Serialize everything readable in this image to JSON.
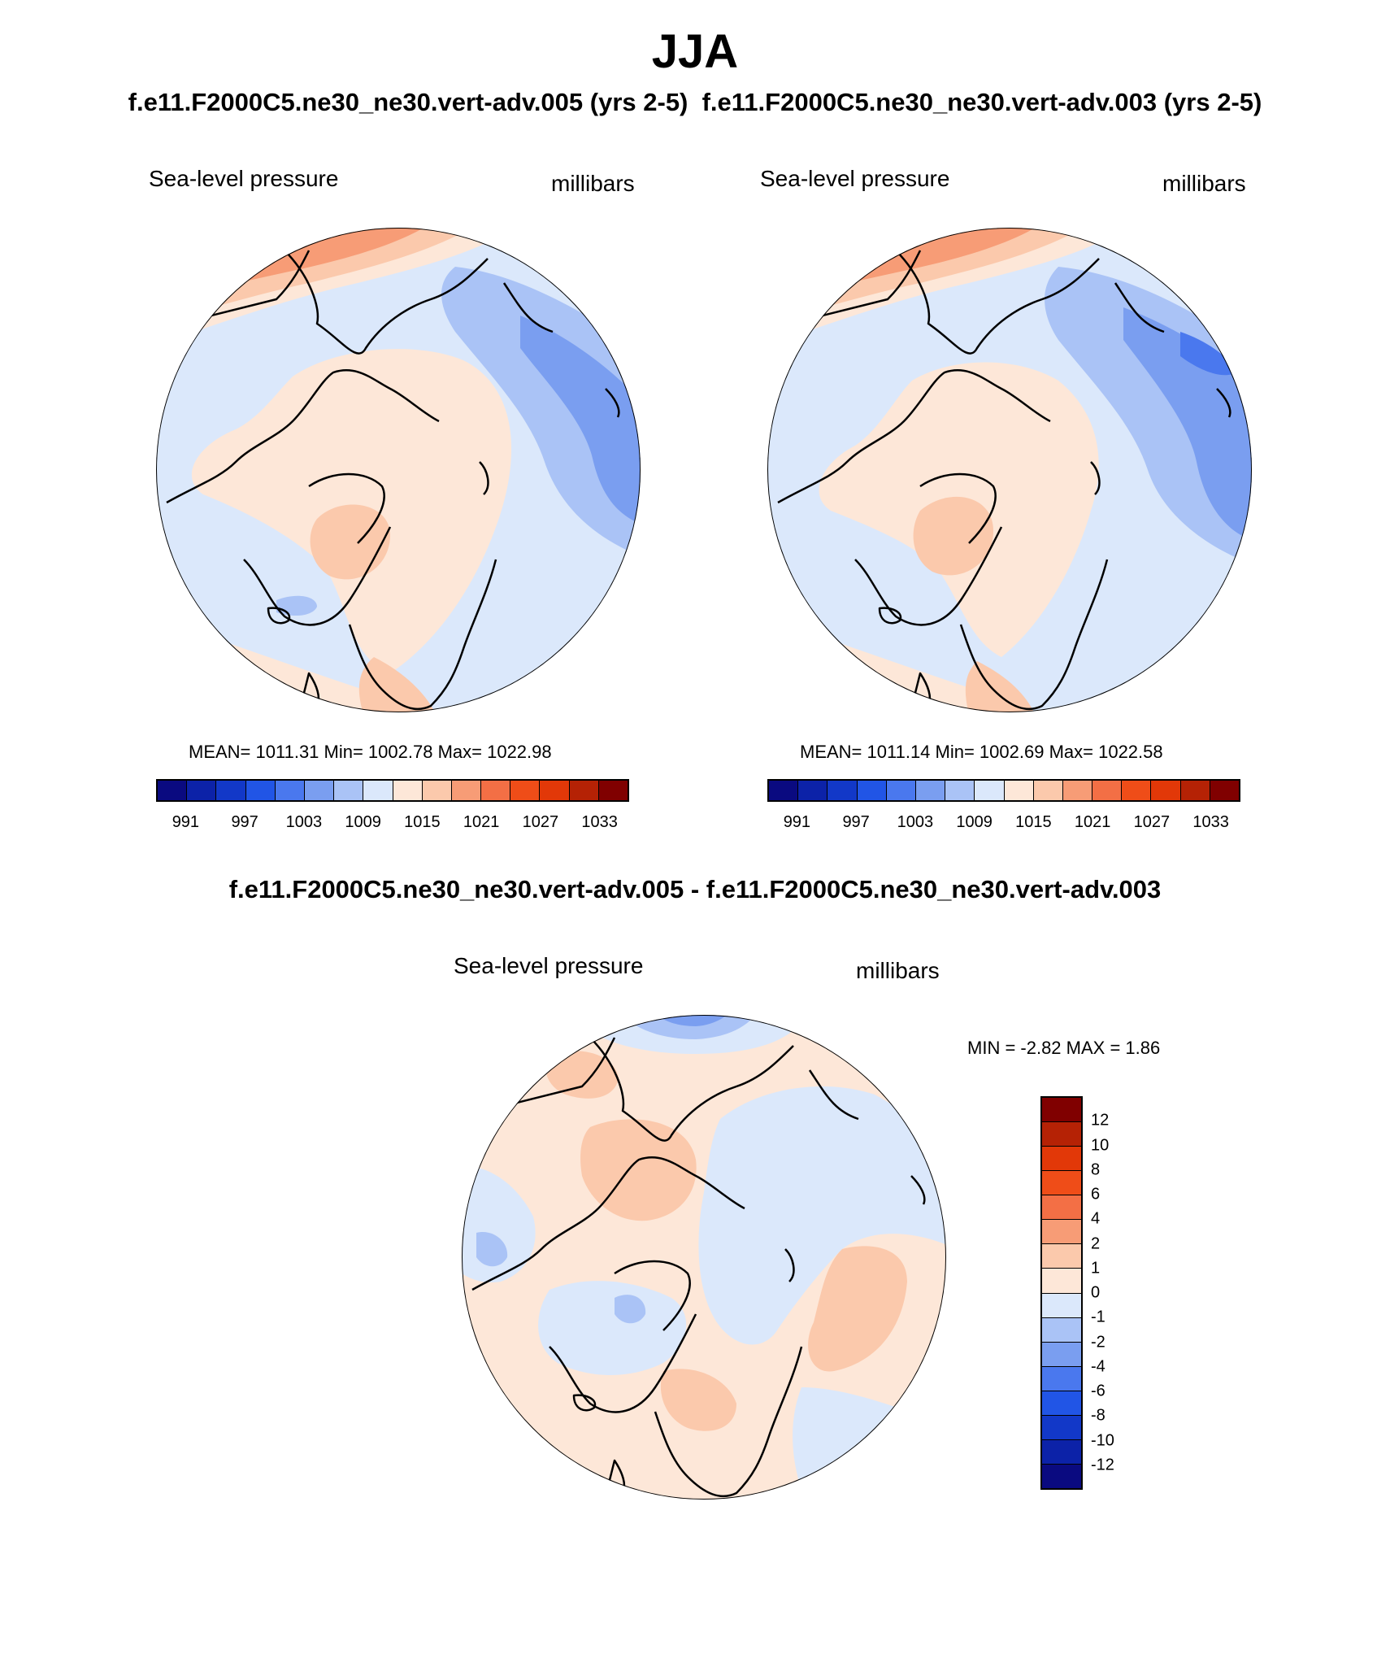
{
  "figure": {
    "season": "JJA",
    "case_titles": "f.e11.F2000C5.ne30_ne30.vert-adv.005 (yrs 2-5)  f.e11.F2000C5.ne30_ne30.vert-adv.003 (yrs 2-5)",
    "diff_title": "f.e11.F2000C5.ne30_ne30.vert-adv.005 - f.e11.F2000C5.ne30_ne30.vert-adv.003"
  },
  "panels": {
    "left": {
      "variable": "Sea-level pressure",
      "units": "millibars",
      "stats": "MEAN= 1011.31  Min= 1002.78  Max= 1022.98"
    },
    "right": {
      "variable": "Sea-level pressure",
      "units": "millibars",
      "stats": "MEAN= 1011.14  Min= 1002.69  Max= 1022.58"
    },
    "diff": {
      "variable": "Sea-level pressure",
      "units": "millibars",
      "stats": "MIN =  -2.82 MAX =   1.86"
    }
  },
  "colorbars": {
    "abs": {
      "colors": [
        "#0a0a80",
        "#0c22a8",
        "#1238c8",
        "#2155e6",
        "#4a78ee",
        "#7a9ef0",
        "#aac3f6",
        "#dbe8fb",
        "#fde7d8",
        "#fbc9ac",
        "#f79c76",
        "#f36f45",
        "#ef4d18",
        "#e23808",
        "#b52205",
        "#800000"
      ],
      "tick_labels": [
        "991",
        "997",
        "1003",
        "1009",
        "1015",
        "1021",
        "1027",
        "1033"
      ]
    },
    "diff": {
      "colors": [
        "#800000",
        "#b52205",
        "#e23808",
        "#ef4d18",
        "#f36f45",
        "#f79c76",
        "#fbc9ac",
        "#fde7d8",
        "#dbe8fb",
        "#aac3f6",
        "#7a9ef0",
        "#4a78ee",
        "#2155e6",
        "#1238c8",
        "#0c22a8",
        "#0a0a80"
      ],
      "tick_labels": [
        "12",
        "10",
        "8",
        "6",
        "4",
        "2",
        "1",
        "0",
        "-1",
        "-2",
        "-4",
        "-6",
        "-8",
        "-10",
        "-12"
      ]
    }
  },
  "map_fill": {
    "left": {
      "base": "#dbe8fb",
      "warm": "#fde7d8",
      "warm2": "#fbc9ac",
      "warm3": "#f79c76",
      "cool": "#aac3f6",
      "cool2": "#7a9ef0"
    },
    "right": {
      "base": "#dbe8fb",
      "warm": "#fde7d8",
      "warm2": "#fbc9ac",
      "warm3": "#f79c76",
      "cool": "#aac3f6",
      "cool2": "#7a9ef0"
    },
    "diff": {
      "base": "#fde7d8",
      "warm2": "#fbc9ac",
      "cool": "#dbe8fb",
      "cool2": "#aac3f6",
      "cool3": "#7a9ef0"
    }
  }
}
